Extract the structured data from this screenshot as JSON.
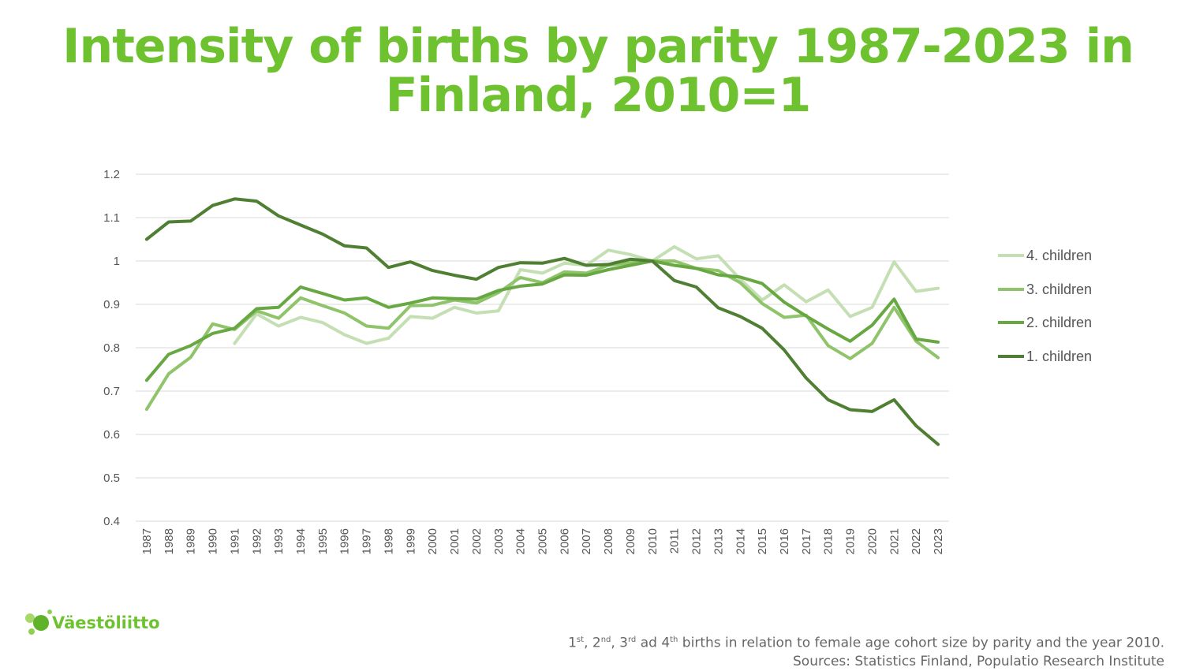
{
  "footer": {
    "note_prefix_1": "1",
    "note_sup_1": "st",
    "note_sep_1": ", 2",
    "note_sup_2": "nd",
    "note_sep_2": ", 3",
    "note_sup_3": "rd",
    "note_sep_3": " ad 4",
    "note_sup_4": "th",
    "note_rest": " births in relation to female age cohort size by parity and the year 2010.",
    "sources": "Sources: Statistics Finland, Populatio Research Institute"
  },
  "logo": {
    "text": "Väestöliitto",
    "icon": "bubbles-logo-icon"
  },
  "colors": {
    "title": "#6ec22f",
    "grid": "#d9d9d9",
    "series": [
      "#c5dfb4",
      "#8fc46b",
      "#68a842",
      "#4f7f33"
    ]
  },
  "chart_data": {
    "type": "line",
    "title": "Intensity of births by parity 1987-2023 in Finland, 2010=1",
    "xlabel": "",
    "ylabel": "",
    "ylim": [
      0.4,
      1.2
    ],
    "yticks": [
      "0.4",
      "0.5",
      "0.6",
      "0.7",
      "0.8",
      "0.9",
      "1",
      "1.1",
      "1.2"
    ],
    "ytick_values": [
      0.4,
      0.5,
      0.6,
      0.7,
      0.8,
      0.9,
      1.0,
      1.1,
      1.2
    ],
    "grid": true,
    "legend_position": "right",
    "categories": [
      "1987",
      "1988",
      "1989",
      "1990",
      "1991",
      "1992",
      "1993",
      "1994",
      "1995",
      "1996",
      "1997",
      "1998",
      "1999",
      "2000",
      "2001",
      "2002",
      "2003",
      "2004",
      "2005",
      "2006",
      "2007",
      "2008",
      "2009",
      "2010",
      "2011",
      "2012",
      "2013",
      "2014",
      "2015",
      "2016",
      "2017",
      "2018",
      "2019",
      "2020",
      "2021",
      "2022",
      "2023"
    ],
    "series": [
      {
        "name": "4. children",
        "values": [
          null,
          null,
          null,
          null,
          0.81,
          0.878,
          0.85,
          0.87,
          0.858,
          0.83,
          0.81,
          0.822,
          0.872,
          0.868,
          0.893,
          0.88,
          0.885,
          0.98,
          0.972,
          0.995,
          0.99,
          1.025,
          1.015,
          1.0,
          1.033,
          1.005,
          1.012,
          0.958,
          0.91,
          0.945,
          0.906,
          0.933,
          0.872,
          0.893,
          0.998,
          0.93,
          0.937
        ]
      },
      {
        "name": "3. children",
        "values": [
          0.658,
          0.74,
          0.778,
          0.855,
          0.842,
          0.885,
          0.868,
          0.915,
          0.897,
          0.88,
          0.85,
          0.845,
          0.897,
          0.898,
          0.91,
          0.903,
          0.927,
          0.962,
          0.95,
          0.975,
          0.972,
          0.99,
          0.996,
          1.0,
          1.0,
          0.983,
          0.978,
          0.95,
          0.902,
          0.87,
          0.875,
          0.805,
          0.775,
          0.81,
          0.893,
          0.815,
          0.777
        ]
      },
      {
        "name": "2. children",
        "values": [
          0.725,
          0.785,
          0.805,
          0.833,
          0.845,
          0.89,
          0.893,
          0.94,
          0.925,
          0.91,
          0.915,
          0.893,
          0.903,
          0.915,
          0.913,
          0.912,
          0.932,
          0.942,
          0.947,
          0.968,
          0.967,
          0.98,
          0.99,
          1.0,
          0.99,
          0.983,
          0.968,
          0.963,
          0.948,
          0.905,
          0.873,
          0.843,
          0.815,
          0.852,
          0.912,
          0.82,
          0.813
        ]
      },
      {
        "name": "1. children",
        "values": [
          1.05,
          1.09,
          1.092,
          1.128,
          1.143,
          1.138,
          1.104,
          1.083,
          1.062,
          1.035,
          1.03,
          0.985,
          0.998,
          0.978,
          0.967,
          0.958,
          0.985,
          0.996,
          0.995,
          1.006,
          0.99,
          0.992,
          1.004,
          1.0,
          0.955,
          0.94,
          0.892,
          0.872,
          0.845,
          0.795,
          0.73,
          0.68,
          0.657,
          0.653,
          0.68,
          0.62,
          0.577
        ]
      }
    ]
  }
}
